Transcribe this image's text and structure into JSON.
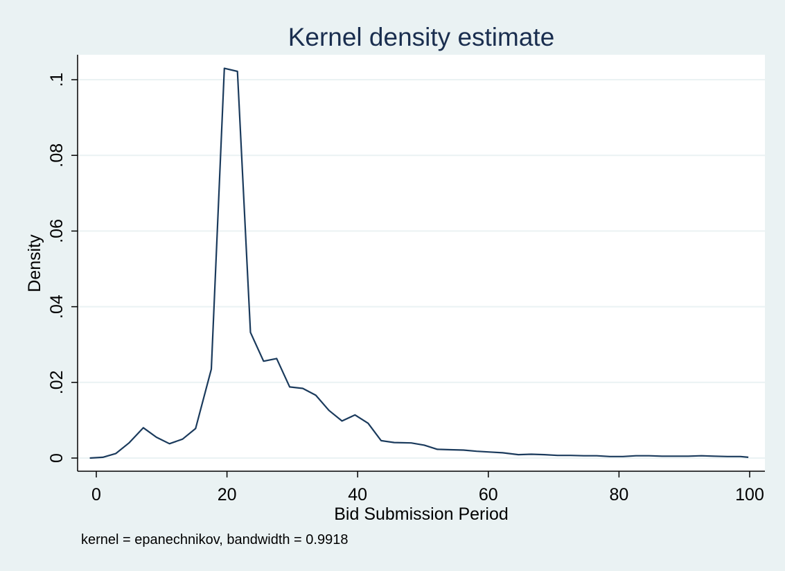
{
  "chart_data": {
    "type": "line",
    "title": "Kernel density estimate",
    "xlabel": "Bid Submission Period",
    "ylabel": "Density",
    "note": "kernel = epanechnikov, bandwidth = 0.9918",
    "xlim": [
      -2,
      101
    ],
    "ylim": [
      -0.003,
      0.106
    ],
    "xticks": [
      0,
      20,
      40,
      60,
      80,
      100
    ],
    "xtick_labels": [
      "0",
      "20",
      "40",
      "60",
      "80",
      "100"
    ],
    "yticks": [
      0,
      0.02,
      0.04,
      0.06,
      0.08,
      0.1
    ],
    "ytick_labels": [
      "0",
      ".02",
      ".04",
      ".06",
      ".08",
      ".1"
    ],
    "grid": true,
    "series": [
      {
        "color": "#1a3a5c",
        "x": [
          -1,
          1,
          3,
          5,
          7.2,
          9.2,
          11.2,
          13.2,
          15.2,
          17.6,
          19.6,
          21.6,
          23.6,
          25.6,
          27.6,
          29.6,
          31.6,
          33.6,
          35.6,
          37.6,
          39.6,
          41.6,
          43.6,
          45.6,
          48.2,
          50.2,
          52.2,
          54.2,
          56.2,
          58.2,
          60.2,
          62.2,
          64.6,
          66.6,
          68.6,
          70.6,
          72.6,
          74.6,
          76.6,
          78.6,
          80.6,
          82.6,
          84.6,
          86.6,
          88.6,
          90.6,
          92.6,
          94.6,
          96.6,
          98.6,
          99.8
        ],
        "y": [
          0.0,
          0.0002,
          0.0012,
          0.004,
          0.008,
          0.0055,
          0.0038,
          0.005,
          0.0078,
          0.0235,
          0.103,
          0.1022,
          0.0332,
          0.0256,
          0.0263,
          0.0188,
          0.0184,
          0.0166,
          0.0126,
          0.0098,
          0.0114,
          0.0092,
          0.0046,
          0.0041,
          0.004,
          0.0034,
          0.0023,
          0.0022,
          0.0021,
          0.0018,
          0.0016,
          0.0014,
          0.0009,
          0.001,
          0.0009,
          0.0007,
          0.0007,
          0.0006,
          0.0006,
          0.0004,
          0.0004,
          0.0006,
          0.0006,
          0.0005,
          0.0005,
          0.0005,
          0.0006,
          0.0005,
          0.0004,
          0.0004,
          0.0002
        ]
      }
    ]
  }
}
